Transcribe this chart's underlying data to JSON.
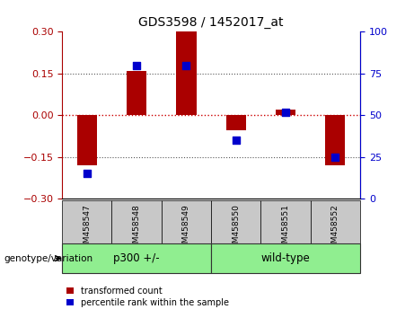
{
  "title": "GDS3598 / 1452017_at",
  "samples": [
    "GSM458547",
    "GSM458548",
    "GSM458549",
    "GSM458550",
    "GSM458551",
    "GSM458552"
  ],
  "red_values": [
    -0.18,
    0.16,
    0.3,
    -0.055,
    0.02,
    -0.18
  ],
  "blue_values": [
    15,
    80,
    80,
    35,
    52,
    25
  ],
  "ylim_left": [
    -0.3,
    0.3
  ],
  "ylim_right": [
    0,
    100
  ],
  "yticks_left": [
    -0.3,
    -0.15,
    0,
    0.15,
    0.3
  ],
  "yticks_right": [
    0,
    25,
    50,
    75,
    100
  ],
  "red_color": "#AA0000",
  "blue_color": "#0000CC",
  "zero_line_color": "#CC0000",
  "dotted_line_color": "#555555",
  "bar_width": 0.4,
  "group_label": "genotype/variation",
  "group1_label": "p300 +/-",
  "group2_label": "wild-type",
  "legend_red": "transformed count",
  "legend_blue": "percentile rank within the sample",
  "tick_bg_color": "#C8C8C8",
  "group_bg_color": "#90EE90"
}
